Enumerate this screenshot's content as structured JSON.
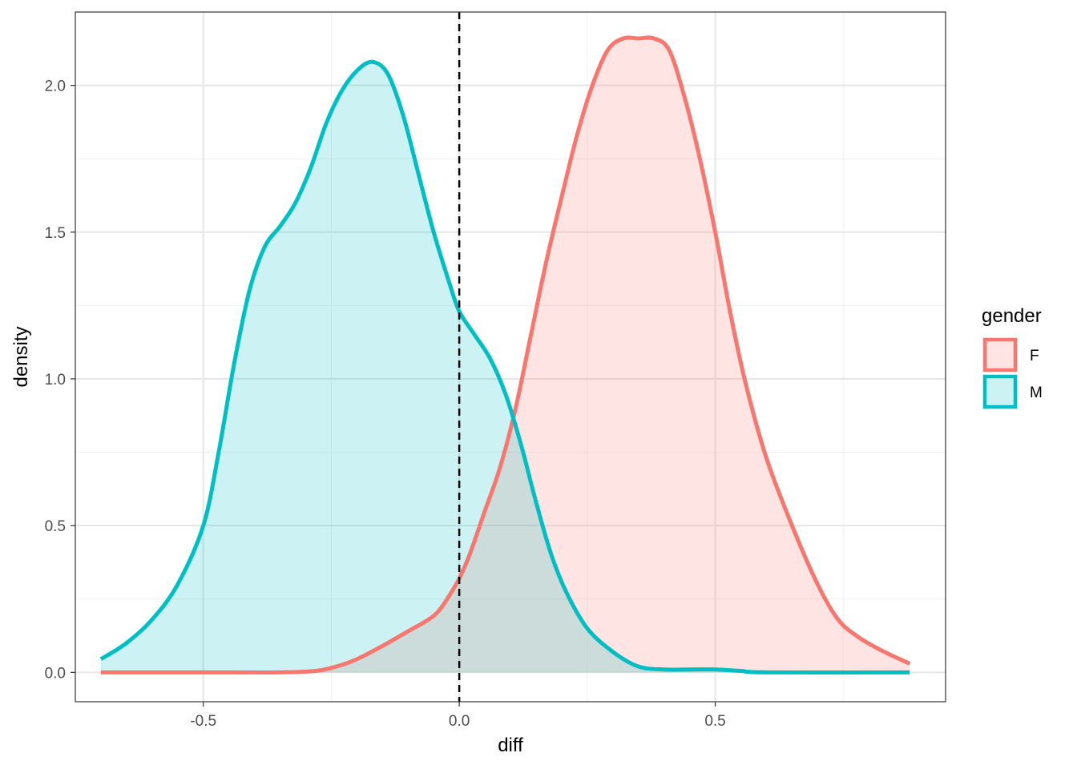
{
  "chart_data": {
    "type": "area",
    "xlabel": "diff",
    "ylabel": "density",
    "xlim": [
      -0.75,
      0.95
    ],
    "ylim": [
      -0.1,
      2.25
    ],
    "x_ticks": [
      -0.5,
      0.0,
      0.5
    ],
    "x_tick_labels": [
      "-0.5",
      "0.0",
      "0.5"
    ],
    "y_ticks": [
      0.0,
      0.5,
      1.0,
      1.5,
      2.0
    ],
    "y_tick_labels": [
      "0.0",
      "0.5",
      "1.0",
      "1.5",
      "2.0"
    ],
    "x_minor_ticks": [
      -0.75,
      -0.25,
      0.25,
      0.75
    ],
    "y_minor_ticks": [
      0.25,
      0.75,
      1.25,
      1.75
    ],
    "grid": true,
    "reference_line": {
      "x": 0.0,
      "style": "dashed",
      "color": "#000000"
    },
    "legend": {
      "title": "gender",
      "position": "right"
    },
    "series": [
      {
        "name": "F",
        "color": "#F8766D",
        "fill": "#F8766D",
        "points": [
          [
            -0.7,
            0.0
          ],
          [
            -0.5,
            0.0
          ],
          [
            -0.35,
            0.0
          ],
          [
            -0.28,
            0.005
          ],
          [
            -0.24,
            0.02
          ],
          [
            -0.2,
            0.045
          ],
          [
            -0.15,
            0.09
          ],
          [
            -0.1,
            0.14
          ],
          [
            -0.06,
            0.18
          ],
          [
            -0.04,
            0.21
          ],
          [
            -0.02,
            0.26
          ],
          [
            0.0,
            0.32
          ],
          [
            0.02,
            0.4
          ],
          [
            0.05,
            0.55
          ],
          [
            0.08,
            0.7
          ],
          [
            0.11,
            0.9
          ],
          [
            0.14,
            1.15
          ],
          [
            0.17,
            1.4
          ],
          [
            0.2,
            1.62
          ],
          [
            0.23,
            1.83
          ],
          [
            0.26,
            2.0
          ],
          [
            0.29,
            2.12
          ],
          [
            0.32,
            2.16
          ],
          [
            0.35,
            2.16
          ],
          [
            0.38,
            2.16
          ],
          [
            0.41,
            2.12
          ],
          [
            0.44,
            1.96
          ],
          [
            0.47,
            1.75
          ],
          [
            0.5,
            1.5
          ],
          [
            0.53,
            1.22
          ],
          [
            0.56,
            0.98
          ],
          [
            0.6,
            0.73
          ],
          [
            0.65,
            0.5
          ],
          [
            0.7,
            0.3
          ],
          [
            0.74,
            0.18
          ],
          [
            0.78,
            0.12
          ],
          [
            0.83,
            0.07
          ],
          [
            0.88,
            0.03
          ]
        ]
      },
      {
        "name": "M",
        "color": "#00BFC4",
        "fill": "#00BFC4",
        "points": [
          [
            -0.7,
            0.045
          ],
          [
            -0.65,
            0.1
          ],
          [
            -0.6,
            0.18
          ],
          [
            -0.55,
            0.3
          ],
          [
            -0.5,
            0.5
          ],
          [
            -0.47,
            0.75
          ],
          [
            -0.44,
            1.05
          ],
          [
            -0.41,
            1.3
          ],
          [
            -0.38,
            1.45
          ],
          [
            -0.35,
            1.52
          ],
          [
            -0.32,
            1.6
          ],
          [
            -0.29,
            1.72
          ],
          [
            -0.26,
            1.87
          ],
          [
            -0.23,
            1.98
          ],
          [
            -0.2,
            2.05
          ],
          [
            -0.17,
            2.08
          ],
          [
            -0.14,
            2.04
          ],
          [
            -0.11,
            1.9
          ],
          [
            -0.08,
            1.7
          ],
          [
            -0.05,
            1.5
          ],
          [
            -0.02,
            1.33
          ],
          [
            0.0,
            1.23
          ],
          [
            0.03,
            1.15
          ],
          [
            0.06,
            1.07
          ],
          [
            0.09,
            0.95
          ],
          [
            0.12,
            0.78
          ],
          [
            0.15,
            0.58
          ],
          [
            0.18,
            0.4
          ],
          [
            0.21,
            0.27
          ],
          [
            0.25,
            0.15
          ],
          [
            0.3,
            0.07
          ],
          [
            0.35,
            0.02
          ],
          [
            0.4,
            0.01
          ],
          [
            0.45,
            0.01
          ],
          [
            0.5,
            0.01
          ],
          [
            0.55,
            0.005
          ],
          [
            0.6,
            0.0
          ],
          [
            0.88,
            0.0
          ]
        ]
      }
    ]
  }
}
